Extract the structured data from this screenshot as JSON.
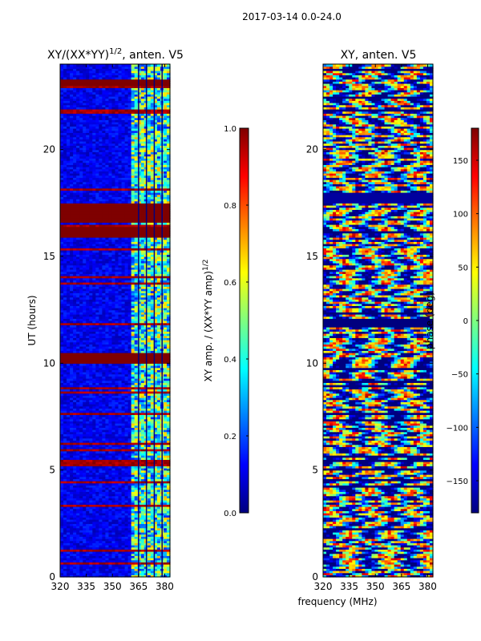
{
  "suptitle": "2017-03-14 0.0-24.0",
  "colors": {
    "jet": [
      "#00007f",
      "#0000ff",
      "#007fff",
      "#00ffff",
      "#7fff7f",
      "#ffff00",
      "#ff7f00",
      "#ff0000",
      "#7f0000"
    ]
  },
  "chart_data": [
    {
      "type": "heatmap",
      "title": "XY/(XX*YY)^{1/2}, anten. V5",
      "title_main": "XY/(XX*YY)",
      "title_exp": "1/2",
      "title_rest": ", anten. V5",
      "xlabel": "",
      "ylabel": "UT (hours)",
      "xlim": [
        320,
        383
      ],
      "ylim": [
        0,
        24
      ],
      "xticks": [
        "320",
        "335",
        "350",
        "365",
        "380"
      ],
      "xtick_values": [
        320,
        335,
        350,
        365,
        380
      ],
      "yticks": [
        "0",
        "5",
        "10",
        "15",
        "20"
      ],
      "ytick_values": [
        0,
        5,
        10,
        15,
        20
      ],
      "colormap": "jet",
      "colorbar": {
        "label": "XY amp. / (XX*YY amp)^{1/2}",
        "label_main": "XY amp. / (XX*YY amp)",
        "label_exp": "1/2",
        "range": [
          0.0,
          1.0
        ],
        "ticks": [
          "0.0",
          "0.2",
          "0.4",
          "0.6",
          "0.8",
          "1.0"
        ],
        "tick_values": [
          0.0,
          0.2,
          0.4,
          0.6,
          0.8,
          1.0
        ]
      },
      "saturated_bands_hours": [
        [
          23.0,
          23.3
        ],
        [
          16.6,
          17.5
        ],
        [
          15.9,
          16.4
        ],
        [
          10.0,
          10.5
        ]
      ],
      "high_amplitude_region_mhz": [
        360,
        383
      ]
    },
    {
      "type": "heatmap",
      "title": "XY, anten. V5",
      "xlabel": "frequency (MHz)",
      "ylabel": "",
      "xlim": [
        320,
        383
      ],
      "ylim": [
        0,
        24
      ],
      "xticks": [
        "320",
        "335",
        "350",
        "365",
        "380"
      ],
      "xtick_values": [
        320,
        335,
        350,
        365,
        380
      ],
      "yticks": [
        "0",
        "5",
        "10",
        "15",
        "20"
      ],
      "ytick_values": [
        0,
        5,
        10,
        15,
        20
      ],
      "colormap": "jet",
      "colorbar": {
        "label": "phase (deg)",
        "range": [
          -180,
          180
        ],
        "ticks": [
          "−150",
          "−100",
          "−50",
          "0",
          "50",
          "100",
          "150"
        ],
        "tick_values": [
          -150,
          -100,
          -50,
          0,
          50,
          100,
          150
        ]
      },
      "flat_band_hours": [
        17.5,
        18.0
      ]
    }
  ]
}
